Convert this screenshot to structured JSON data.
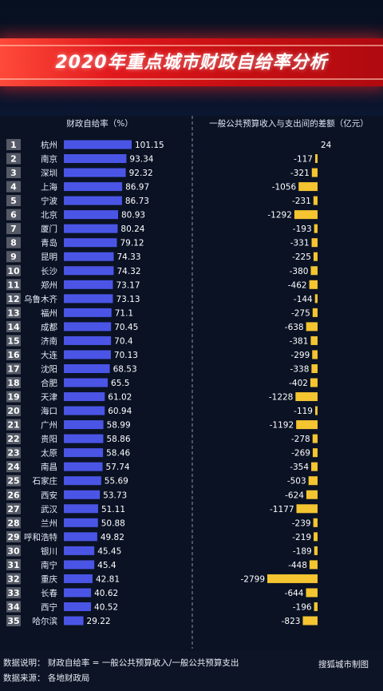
{
  "title": "2020年重点城市财政自给率分析",
  "chart_data": {
    "type": "bar",
    "left_header": "财政自给率（%）",
    "right_header": "一般公共预算收入与支出间的差额（亿元）",
    "ranks": [
      "1",
      "2",
      "3",
      "4",
      "5",
      "6",
      "7",
      "8",
      "9",
      "10",
      "11",
      "12",
      "13",
      "14",
      "15",
      "16",
      "17",
      "18",
      "19",
      "20",
      "21",
      "22",
      "23",
      "24",
      "25",
      "26",
      "27",
      "28",
      "29",
      "30",
      "31",
      "32",
      "33",
      "34",
      "35"
    ],
    "categories": [
      "杭州",
      "南京",
      "深圳",
      "上海",
      "宁波",
      "北京",
      "厦门",
      "青岛",
      "昆明",
      "长沙",
      "郑州",
      "乌鲁木齐",
      "福州",
      "成都",
      "济南",
      "大连",
      "沈阳",
      "合肥",
      "天津",
      "海口",
      "广州",
      "贵阳",
      "太原",
      "南昌",
      "石家庄",
      "西安",
      "武汉",
      "兰州",
      "呼和浩特",
      "银川",
      "南宁",
      "重庆",
      "长春",
      "西宁",
      "哈尔滨"
    ],
    "series": [
      {
        "values": [
          101.15,
          93.34,
          92.32,
          86.97,
          86.73,
          80.93,
          80.24,
          79.12,
          74.33,
          74.32,
          73.17,
          73.13,
          71.1,
          70.45,
          70.4,
          70.13,
          68.53,
          65.5,
          61.02,
          60.94,
          58.99,
          58.86,
          58.46,
          57.74,
          55.69,
          53.73,
          51.11,
          50.88,
          49.82,
          45.45,
          45.4,
          42.81,
          40.62,
          40.52,
          29.22
        ]
      },
      {
        "values": [
          24,
          -117,
          -321,
          -1056,
          -231,
          -1292,
          -193,
          -331,
          -225,
          -380,
          -462,
          -144,
          -275,
          -638,
          -381,
          -299,
          -338,
          -402,
          -1228,
          -119,
          -1192,
          -278,
          -269,
          -354,
          -503,
          -624,
          -1177,
          -239,
          -219,
          -189,
          -448,
          -2799,
          -644,
          -196,
          -823
        ]
      }
    ],
    "value_labels": [
      "101.15",
      "93.34",
      "92.32",
      "86.97",
      "86.73",
      "80.93",
      "80.24",
      "79.12",
      "74.33",
      "74.32",
      "73.17",
      "73.13",
      "71.1",
      "70.45",
      "70.4",
      "70.13",
      "68.53",
      "65.5",
      "61.02",
      "60.94",
      "58.99",
      "58.86",
      "58.46",
      "57.74",
      "55.69",
      "53.73",
      "51.11",
      "50.88",
      "49.82",
      "45.45",
      "45.4",
      "42.81",
      "40.62",
      "40.52",
      "29.22"
    ],
    "diff_labels": [
      "24",
      "-117",
      "-321",
      "-1056",
      "-231",
      "-1292",
      "-193",
      "-331",
      "-225",
      "-380",
      "-462",
      "-144",
      "-275",
      "-638",
      "-381",
      "-299",
      "-338",
      "-402",
      "-1228",
      "-119",
      "-1192",
      "-278",
      "-269",
      "-354",
      "-503",
      "-624",
      "-1177",
      "-239",
      "-219",
      "-189",
      "-448",
      "-2799",
      "-644",
      "-196",
      "-823"
    ],
    "colors": {
      "rate_bar": "#4a55e6",
      "diff_bar": "#f4c431",
      "rank_box": "#555a66"
    }
  },
  "footer": {
    "note": "数据说明：  财政自给率 = 一般公共预算收入/一般公共预算支出",
    "source": "数据来源：  各地财政局",
    "brand": "搜狐城市制图"
  }
}
